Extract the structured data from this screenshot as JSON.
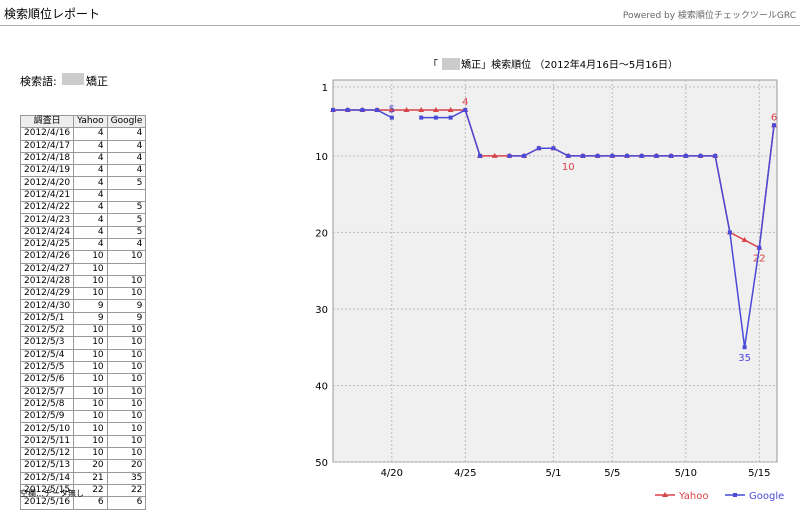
{
  "header": {
    "title": "検索順位レポート",
    "powered": "Powered by 検索順位チェックツールGRC"
  },
  "search": {
    "label": "検索語:",
    "term": "矯正"
  },
  "table": {
    "columns": [
      "調査日",
      "Yahoo",
      "Google"
    ],
    "rows": [
      [
        "2012/4/16",
        4,
        4
      ],
      [
        "2012/4/17",
        4,
        4
      ],
      [
        "2012/4/18",
        4,
        4
      ],
      [
        "2012/4/19",
        4,
        4
      ],
      [
        "2012/4/20",
        4,
        5
      ],
      [
        "2012/4/21",
        4,
        null
      ],
      [
        "2012/4/22",
        4,
        5
      ],
      [
        "2012/4/23",
        4,
        5
      ],
      [
        "2012/4/24",
        4,
        5
      ],
      [
        "2012/4/25",
        4,
        4
      ],
      [
        "2012/4/26",
        10,
        10
      ],
      [
        "2012/4/27",
        10,
        null
      ],
      [
        "2012/4/28",
        10,
        10
      ],
      [
        "2012/4/29",
        10,
        10
      ],
      [
        "2012/4/30",
        9,
        9
      ],
      [
        "2012/5/1",
        9,
        9
      ],
      [
        "2012/5/2",
        10,
        10
      ],
      [
        "2012/5/3",
        10,
        10
      ],
      [
        "2012/5/4",
        10,
        10
      ],
      [
        "2012/5/5",
        10,
        10
      ],
      [
        "2012/5/6",
        10,
        10
      ],
      [
        "2012/5/7",
        10,
        10
      ],
      [
        "2012/5/8",
        10,
        10
      ],
      [
        "2012/5/9",
        10,
        10
      ],
      [
        "2012/5/10",
        10,
        10
      ],
      [
        "2012/5/11",
        10,
        10
      ],
      [
        "2012/5/12",
        10,
        10
      ],
      [
        "2012/5/13",
        20,
        20
      ],
      [
        "2012/5/14",
        21,
        35
      ],
      [
        "2012/5/15",
        22,
        22
      ],
      [
        "2012/5/16",
        6,
        6
      ]
    ]
  },
  "note": "空欄…データ無し",
  "chart_data": {
    "type": "line",
    "title": "「　　 矯正」検索順位 （2012年4月16日～5月16日）",
    "categories": [
      null,
      null,
      null,
      null,
      "4/20",
      null,
      null,
      null,
      null,
      "4/25",
      null,
      null,
      null,
      null,
      null,
      "5/1",
      null,
      null,
      null,
      "5/5",
      null,
      null,
      null,
      null,
      "5/10",
      null,
      null,
      null,
      null,
      "5/15",
      null
    ],
    "series": [
      {
        "name": "Yahoo",
        "color": "#d9434a",
        "marker": "triangle",
        "values": [
          4,
          4,
          4,
          4,
          4,
          4,
          4,
          4,
          4,
          4,
          10,
          10,
          10,
          10,
          9,
          9,
          10,
          10,
          10,
          10,
          10,
          10,
          10,
          10,
          10,
          10,
          10,
          20,
          21,
          22,
          6
        ],
        "value_labels": [
          null,
          null,
          null,
          null,
          null,
          null,
          null,
          null,
          null,
          "4",
          null,
          null,
          null,
          null,
          null,
          null,
          "10",
          null,
          null,
          null,
          null,
          null,
          null,
          null,
          null,
          null,
          null,
          null,
          null,
          "22",
          "6"
        ]
      },
      {
        "name": "Google",
        "color": "#4a4ad9",
        "marker": "square",
        "values": [
          4,
          4,
          4,
          4,
          5,
          null,
          5,
          5,
          5,
          4,
          10,
          null,
          10,
          10,
          9,
          9,
          10,
          10,
          10,
          10,
          10,
          10,
          10,
          10,
          10,
          10,
          10,
          20,
          35,
          22,
          6
        ],
        "value_labels": [
          null,
          null,
          null,
          null,
          "5",
          null,
          null,
          null,
          null,
          null,
          null,
          null,
          null,
          null,
          null,
          null,
          null,
          null,
          null,
          null,
          null,
          null,
          null,
          null,
          null,
          null,
          null,
          null,
          "35",
          null,
          null
        ]
      }
    ],
    "ylim": [
      50,
      1
    ],
    "yticks": [
      1,
      10,
      20,
      30,
      40,
      50
    ],
    "grid": true,
    "legend": "bottom-right"
  }
}
